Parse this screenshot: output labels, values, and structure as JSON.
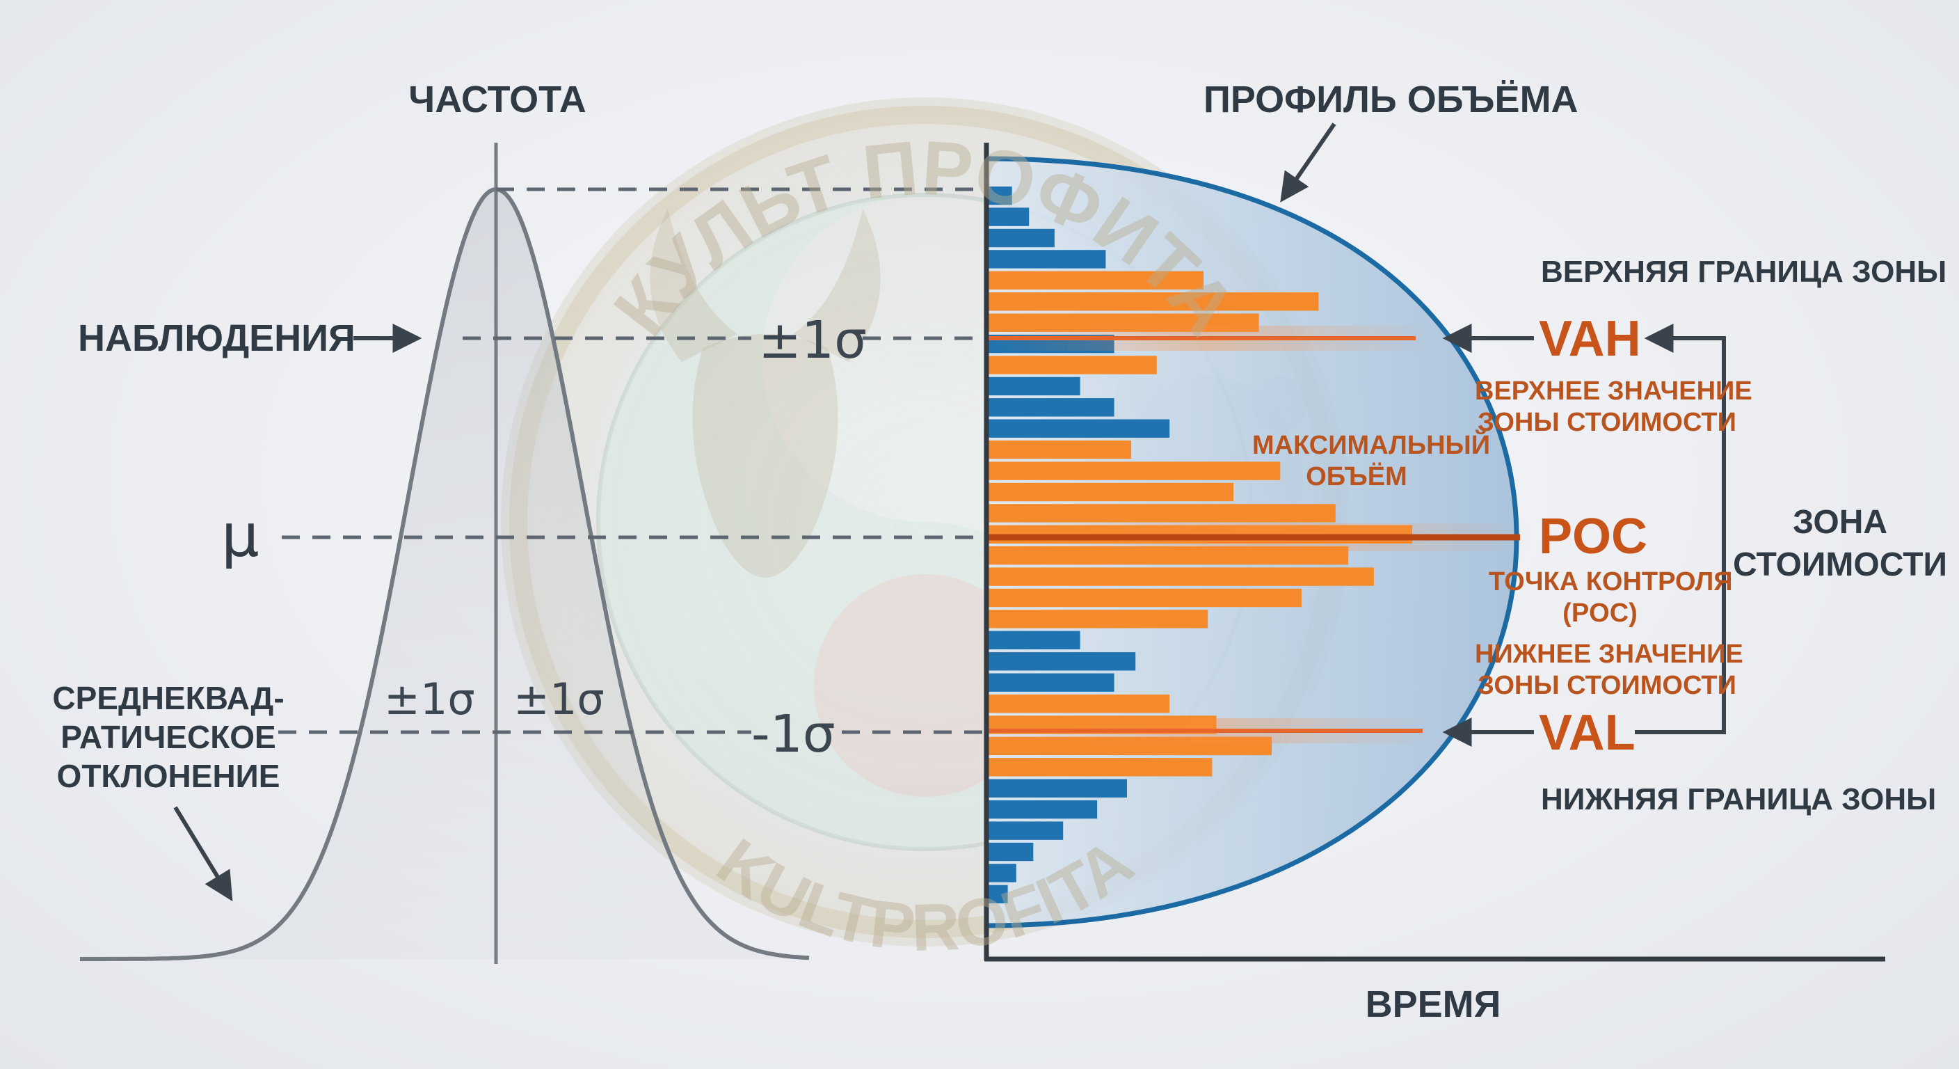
{
  "labels": {
    "frequency": "ЧАСТОТА",
    "volume_profile": "ПРОФИЛЬ ОБЪЁМА",
    "observations": "НАБЛЮДЕНИЯ",
    "mu": "μ",
    "std_dev_line1": "СРЕДНЕКВАД-",
    "std_dev_line2": "РАТИЧЕСКОЕ",
    "std_dev_line3": "ОТКЛОНЕНИЕ",
    "sigma_left": "±1σ",
    "sigma_right": "±1σ",
    "sigma_upper": "±1σ",
    "sigma_lower": "-1σ",
    "time": "ВРЕМЯ",
    "upper_zone_boundary": "ВЕРХНЯЯ ГРАНИЦА ЗОНЫ",
    "lower_zone_boundary": "НИЖНЯЯ ГРАНИЦА ЗОНЫ",
    "vah": "VAH",
    "vah_desc_line1": "ВЕРХНЕЕ ЗНАЧЕНИЕ",
    "vah_desc_line2": "ЗОНЫ СТОИМОСТИ",
    "poc": "POC",
    "poc_desc_line1": "ТОЧКА КОНТРОЛЯ",
    "poc_desc_line2": "(POC)",
    "val": "VAL",
    "val_desc_line1": "НИЖНЕЕ ЗНАЧЕНИЕ",
    "val_desc_line2": "ЗОНЫ СТОИМОСТИ",
    "max_volume_line1": "МАКСИМАЛЬНЫЙ",
    "max_volume_line2": "ОБЪЁМ",
    "value_zone_line1": "ЗОНА",
    "value_zone_line2": "СТОИМОСТИ",
    "watermark_top": "КУЛЬТ ПРОФИТА",
    "watermark_bottom": "KULTPROFITA"
  },
  "colors": {
    "blue_bar": "#1f73b0",
    "orange_bar": "#f48a2b",
    "dark_text": "#2f3a44",
    "accent_orange": "#c8541a",
    "axis": "#333a42",
    "dashed": "#5d6670"
  },
  "profile_bars": [
    {
      "value": 0.06,
      "zone": "outside"
    },
    {
      "value": 0.1,
      "zone": "outside"
    },
    {
      "value": 0.16,
      "zone": "outside"
    },
    {
      "value": 0.28,
      "zone": "outside"
    },
    {
      "value": 0.51,
      "zone": "value_area"
    },
    {
      "value": 0.78,
      "zone": "value_area"
    },
    {
      "value": 0.64,
      "zone": "value_area"
    },
    {
      "value": 0.3,
      "zone": "outside"
    },
    {
      "value": 0.4,
      "zone": "value_area"
    },
    {
      "value": 0.22,
      "zone": "outside"
    },
    {
      "value": 0.3,
      "zone": "outside"
    },
    {
      "value": 0.43,
      "zone": "outside"
    },
    {
      "value": 0.34,
      "zone": "value_area"
    },
    {
      "value": 0.69,
      "zone": "value_area"
    },
    {
      "value": 0.58,
      "zone": "value_area"
    },
    {
      "value": 0.82,
      "zone": "value_area"
    },
    {
      "value": 1.0,
      "zone": "value_area"
    },
    {
      "value": 0.85,
      "zone": "value_area"
    },
    {
      "value": 0.91,
      "zone": "value_area"
    },
    {
      "value": 0.74,
      "zone": "value_area"
    },
    {
      "value": 0.52,
      "zone": "value_area"
    },
    {
      "value": 0.22,
      "zone": "outside"
    },
    {
      "value": 0.35,
      "zone": "outside"
    },
    {
      "value": 0.3,
      "zone": "outside"
    },
    {
      "value": 0.43,
      "zone": "value_area"
    },
    {
      "value": 0.54,
      "zone": "value_area"
    },
    {
      "value": 0.67,
      "zone": "value_area"
    },
    {
      "value": 0.53,
      "zone": "value_area"
    },
    {
      "value": 0.33,
      "zone": "outside"
    },
    {
      "value": 0.26,
      "zone": "outside"
    },
    {
      "value": 0.18,
      "zone": "outside"
    },
    {
      "value": 0.11,
      "zone": "outside"
    },
    {
      "value": 0.07,
      "zone": "outside"
    },
    {
      "value": 0.05,
      "zone": "outside"
    }
  ]
}
